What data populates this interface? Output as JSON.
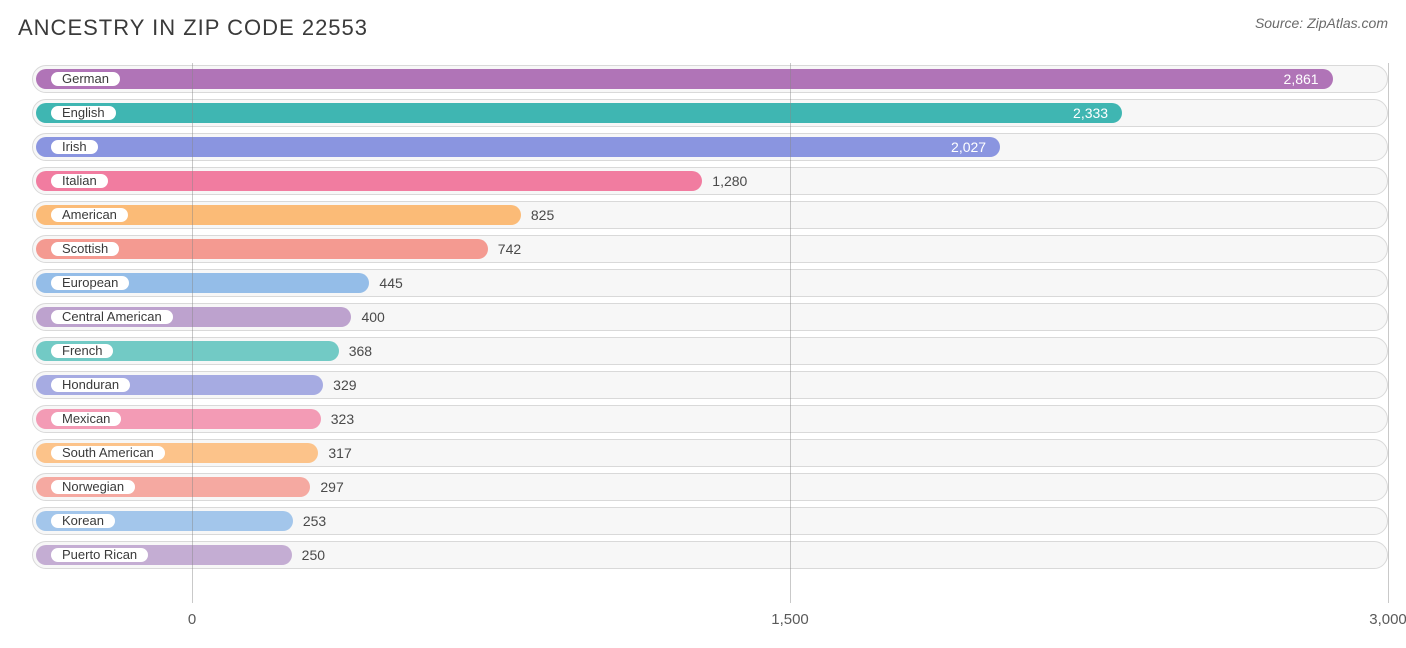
{
  "title": "ANCESTRY IN ZIP CODE 22553",
  "source": "Source: ZipAtlas.com",
  "chart": {
    "type": "bar-horizontal",
    "xlim": [
      0,
      3000
    ],
    "ticks": [
      0,
      1500,
      3000
    ],
    "tick_labels": [
      "0",
      "1,500",
      "3,000"
    ],
    "grid_color": "#888888",
    "track_bg": "#f7f7f7",
    "track_border": "#d9d9d9",
    "label_fontsize": 13,
    "value_fontsize": 14,
    "max_value_for_scale": 3000,
    "series": [
      {
        "label": "German",
        "value": 2861,
        "value_label": "2,861",
        "color": "#b074b7",
        "value_inside": true
      },
      {
        "label": "English",
        "value": 2333,
        "value_label": "2,333",
        "color": "#3fb6b2",
        "value_inside": true
      },
      {
        "label": "Irish",
        "value": 2027,
        "value_label": "2,027",
        "color": "#8a95e0",
        "value_inside": true
      },
      {
        "label": "Italian",
        "value": 1280,
        "value_label": "1,280",
        "color": "#f17ca0",
        "value_inside": false
      },
      {
        "label": "American",
        "value": 825,
        "value_label": "825",
        "color": "#fbbb77",
        "value_inside": false
      },
      {
        "label": "Scottish",
        "value": 742,
        "value_label": "742",
        "color": "#f49a91",
        "value_inside": false
      },
      {
        "label": "European",
        "value": 445,
        "value_label": "445",
        "color": "#94bde8",
        "value_inside": false
      },
      {
        "label": "Central American",
        "value": 400,
        "value_label": "400",
        "color": "#bda2ce",
        "value_inside": false
      },
      {
        "label": "French",
        "value": 368,
        "value_label": "368",
        "color": "#72cac5",
        "value_inside": false
      },
      {
        "label": "Honduran",
        "value": 329,
        "value_label": "329",
        "color": "#a6abe2",
        "value_inside": false
      },
      {
        "label": "Mexican",
        "value": 323,
        "value_label": "323",
        "color": "#f39bb5",
        "value_inside": false
      },
      {
        "label": "South American",
        "value": 317,
        "value_label": "317",
        "color": "#fcc38a",
        "value_inside": false
      },
      {
        "label": "Norwegian",
        "value": 297,
        "value_label": "297",
        "color": "#f5a9a1",
        "value_inside": false
      },
      {
        "label": "Korean",
        "value": 253,
        "value_label": "253",
        "color": "#a3c6eb",
        "value_inside": false
      },
      {
        "label": "Puerto Rican",
        "value": 250,
        "value_label": "250",
        "color": "#c4add3",
        "value_inside": false
      }
    ]
  }
}
